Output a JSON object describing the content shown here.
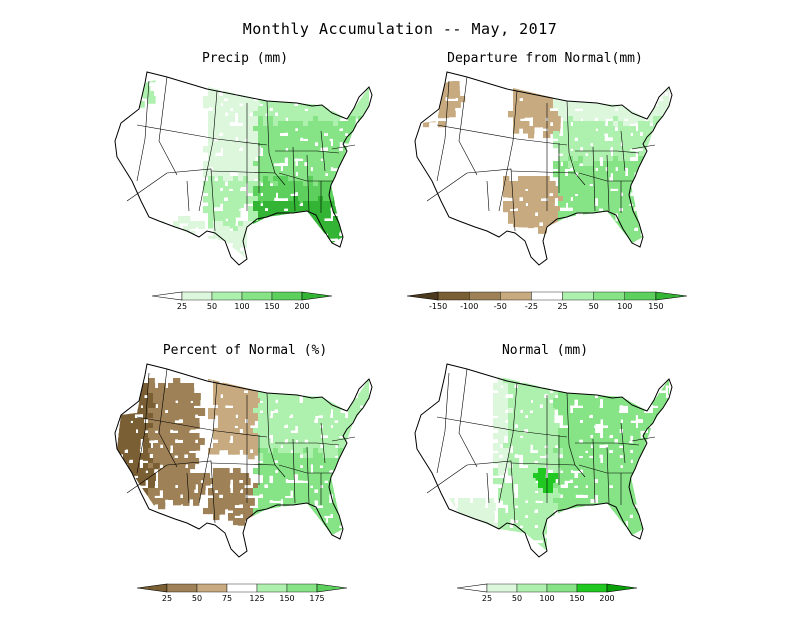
{
  "title": "Monthly Accumulation -- May, 2017",
  "panels": [
    {
      "title": "Precip (mm)",
      "scheme": "precip"
    },
    {
      "title": "Departure from Normal(mm)",
      "scheme": "departure"
    },
    {
      "title": "Percent of Normal (%)",
      "scheme": "percent"
    },
    {
      "title": "Normal (mm)",
      "scheme": "normal"
    }
  ],
  "colorbars": [
    {
      "ticks": [
        "25",
        "50",
        "100",
        "150",
        "200"
      ],
      "colors": [
        "#ffffff",
        "#ddf7dd",
        "#aef0ae",
        "#86e486",
        "#5ccf5c",
        "#34b434"
      ]
    },
    {
      "ticks": [
        "-150",
        "-100",
        "-50",
        "-25",
        "25",
        "50",
        "100",
        "150"
      ],
      "colors": [
        "#4b3a1e",
        "#7a5e34",
        "#9e8156",
        "#c8aa80",
        "#ffffff",
        "#aef0ae",
        "#86e486",
        "#5ccf5c",
        "#34b434"
      ]
    },
    {
      "ticks": [
        "25",
        "50",
        "75",
        "125",
        "150",
        "175"
      ],
      "colors": [
        "#7a5e34",
        "#9e8156",
        "#c8aa80",
        "#ffffff",
        "#aef0ae",
        "#86e486",
        "#5ccf5c"
      ]
    },
    {
      "ticks": [
        "25",
        "50",
        "100",
        "150",
        "200"
      ],
      "colors": [
        "#ffffff",
        "#ddf7dd",
        "#aef0ae",
        "#86e486",
        "#22c822",
        "#0aa00a"
      ]
    }
  ]
}
